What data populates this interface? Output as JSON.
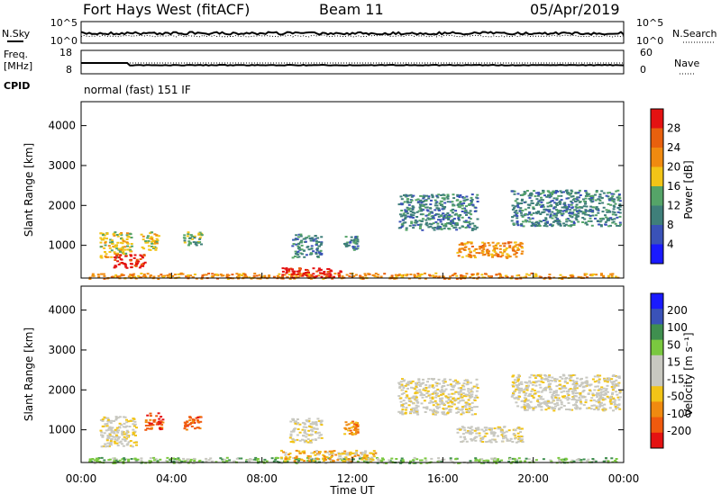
{
  "header": {
    "station": "Fort Hays West (fitACF)",
    "beam": "Beam 11",
    "date": "05/Apr/2019"
  },
  "panels": {
    "nsky_label": "N.Sky",
    "nsearch_label": "N.Search",
    "freq_label_1": "Freq.",
    "freq_label_2": "[MHz]",
    "nave_label": "Nave",
    "cpid_label": "CPID",
    "cpid_text": "normal (fast) 151 IF",
    "noise_ticks_left": [
      "10^5",
      "10^0"
    ],
    "noise_ticks_right": [
      "10^5",
      "10^0"
    ],
    "freq_ticks_left": [
      "18",
      "8"
    ],
    "freq_ticks_right": [
      "60",
      "0"
    ]
  },
  "colors": {
    "power": [
      "#1a1aff",
      "#3a52b8",
      "#3f7f7a",
      "#55a468",
      "#f2c417",
      "#f08a10",
      "#e8600e",
      "#e41212"
    ],
    "velocity": [
      "#e41212",
      "#f05a0e",
      "#f08a10",
      "#f2c417",
      "#c8c8c0",
      "#c8c8c0",
      "#7ac83f",
      "#3f8f4f",
      "#3a52b8",
      "#1a1aff"
    ],
    "ground": "#c8c8c0"
  },
  "chart_data": [
    {
      "type": "heatmap",
      "name": "power",
      "ylabel": "Slant Range [km]",
      "ylim": [
        180,
        4600
      ],
      "xlim": [
        0,
        24
      ],
      "yticks": [
        "4000",
        "3000",
        "2000",
        "1000"
      ],
      "colorbar_label": "Power [dB]",
      "colorbar_ticks": [
        "28",
        "24",
        "20",
        "16",
        "12",
        "8",
        "4"
      ],
      "regions": [
        {
          "t0": 0.8,
          "t1": 2.2,
          "r0": 700,
          "r1": 1350,
          "level": 4
        },
        {
          "t0": 1.4,
          "t1": 2.8,
          "r0": 450,
          "r1": 800,
          "level": 7
        },
        {
          "t0": 2.6,
          "t1": 3.4,
          "r0": 900,
          "r1": 1350,
          "level": 4
        },
        {
          "t0": 4.5,
          "t1": 5.3,
          "r0": 1000,
          "r1": 1350,
          "level": 3
        },
        {
          "t0": 9.3,
          "t1": 10.6,
          "r0": 700,
          "r1": 1300,
          "level": 2
        },
        {
          "t0": 11.6,
          "t1": 12.2,
          "r0": 900,
          "r1": 1250,
          "level": 2
        },
        {
          "t0": 14.0,
          "t1": 17.5,
          "r0": 1400,
          "r1": 2300,
          "level": 2
        },
        {
          "t0": 16.6,
          "t1": 19.5,
          "r0": 700,
          "r1": 1100,
          "level": 5
        },
        {
          "t0": 19.0,
          "t1": 23.8,
          "r0": 1500,
          "r1": 2400,
          "level": 2
        },
        {
          "t0": 0.3,
          "t1": 23.7,
          "r0": 180,
          "r1": 320,
          "level": 5
        },
        {
          "t0": 8.8,
          "t1": 11.5,
          "r0": 200,
          "r1": 450,
          "level": 7
        }
      ]
    },
    {
      "type": "heatmap",
      "name": "velocity",
      "ylabel": "Slant Range [km]",
      "xlabel": "Time UT",
      "ylim": [
        180,
        4600
      ],
      "xlim": [
        0,
        24
      ],
      "yticks": [
        "4000",
        "3000",
        "2000",
        "1000"
      ],
      "xticks": [
        "00:00",
        "04:00",
        "08:00",
        "12:00",
        "16:00",
        "20:00",
        "00:00"
      ],
      "colorbar_label": "Velocity [m s⁻¹]",
      "colorbar_ticks": [
        "200",
        "100",
        "50",
        "15",
        "-15",
        "-50",
        "-100",
        "-200"
      ],
      "regions": [
        {
          "t0": 0.8,
          "t1": 2.4,
          "r0": 600,
          "r1": 1350,
          "level": 4
        },
        {
          "t0": 2.8,
          "t1": 3.6,
          "r0": 1000,
          "r1": 1450,
          "level": 1
        },
        {
          "t0": 4.5,
          "t1": 5.3,
          "r0": 1000,
          "r1": 1350,
          "level": 1
        },
        {
          "t0": 9.2,
          "t1": 10.6,
          "r0": 700,
          "r1": 1300,
          "level": 4
        },
        {
          "t0": 11.6,
          "t1": 12.2,
          "r0": 900,
          "r1": 1250,
          "level": 2
        },
        {
          "t0": 14.0,
          "t1": 17.5,
          "r0": 1400,
          "r1": 2300,
          "level": 4
        },
        {
          "t0": 16.6,
          "t1": 19.5,
          "r0": 700,
          "r1": 1100,
          "level": 4
        },
        {
          "t0": 19.0,
          "t1": 23.8,
          "r0": 1500,
          "r1": 2400,
          "level": 4
        },
        {
          "t0": 0.3,
          "t1": 23.7,
          "r0": 180,
          "r1": 320,
          "level": 6
        },
        {
          "t0": 8.8,
          "t1": 13.0,
          "r0": 200,
          "r1": 500,
          "level": 3
        }
      ]
    }
  ]
}
